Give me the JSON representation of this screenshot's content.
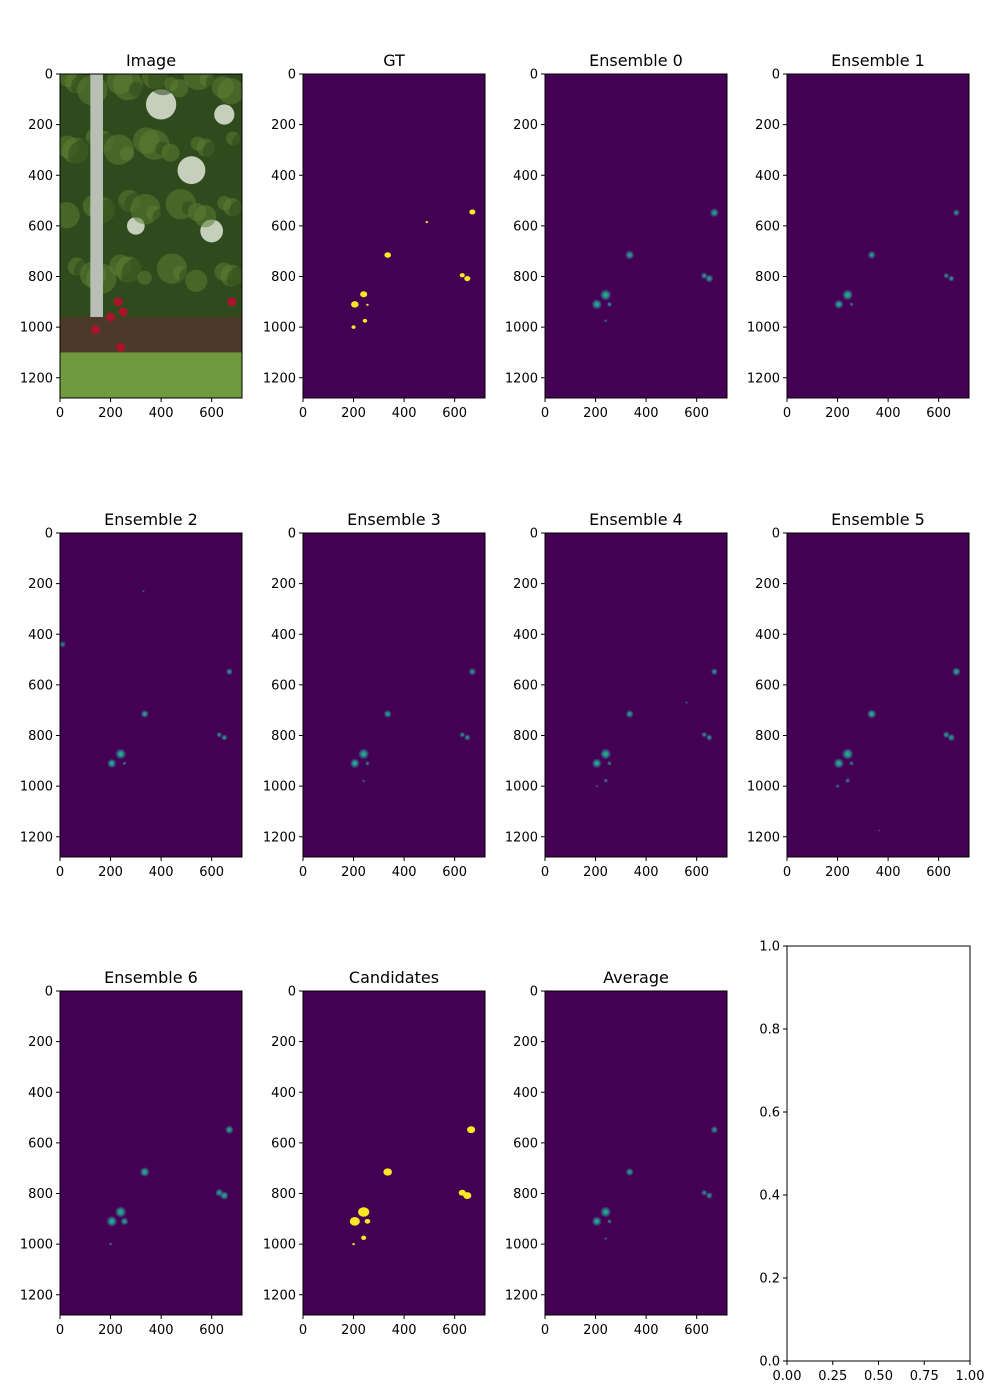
{
  "figure": {
    "background": "#ffffff",
    "colors": {
      "mask_background": "#440154",
      "mask_foreground": "#fde725",
      "blob_core": "#35b779",
      "blob_mid": "#21918c",
      "blob_edge": "#3b528b"
    }
  },
  "chart_data": [
    {
      "type": "heatmap",
      "title": "Image",
      "content": "photo",
      "x_ticks": [
        0,
        200,
        400,
        600
      ],
      "y_ticks": [
        0,
        200,
        400,
        600,
        800,
        1000,
        1200
      ],
      "xlim": [
        0,
        720
      ],
      "ylim": [
        1280,
        0
      ],
      "photo_colors": {
        "sky": "#dfe6d8",
        "foliage": "#2f4a1c",
        "foliage_light": "#5b7f33",
        "trunk": "#b9bfb4",
        "ground": "#4b3a2a",
        "grass": "#6f9a3d",
        "fruit": "#a8142a"
      }
    },
    {
      "type": "heatmap",
      "title": "GT",
      "content": "binary_mask",
      "x_ticks": [
        0,
        200,
        400,
        600
      ],
      "y_ticks": [
        0,
        200,
        400,
        600,
        800,
        1000,
        1200
      ],
      "xlim": [
        0,
        720
      ],
      "ylim": [
        1280,
        0
      ],
      "blobs": [
        {
          "x": 670,
          "y": 545,
          "r": 12
        },
        {
          "x": 490,
          "y": 585,
          "r": 5
        },
        {
          "x": 335,
          "y": 715,
          "r": 13
        },
        {
          "x": 630,
          "y": 795,
          "r": 10
        },
        {
          "x": 650,
          "y": 808,
          "r": 12
        },
        {
          "x": 240,
          "y": 870,
          "r": 14
        },
        {
          "x": 205,
          "y": 910,
          "r": 15
        },
        {
          "x": 255,
          "y": 912,
          "r": 5
        },
        {
          "x": 245,
          "y": 975,
          "r": 9
        },
        {
          "x": 200,
          "y": 1000,
          "r": 8
        }
      ]
    },
    {
      "type": "heatmap",
      "title": "Ensemble 0",
      "content": "probability",
      "x_ticks": [
        0,
        200,
        400,
        600
      ],
      "y_ticks": [
        0,
        200,
        400,
        600,
        800,
        1000,
        1200
      ],
      "xlim": [
        0,
        720
      ],
      "ylim": [
        1280,
        0
      ],
      "blobs": [
        {
          "x": 670,
          "y": 548,
          "r": 16,
          "v": 0.5
        },
        {
          "x": 335,
          "y": 715,
          "r": 16,
          "v": 0.5
        },
        {
          "x": 630,
          "y": 797,
          "r": 12,
          "v": 0.45
        },
        {
          "x": 650,
          "y": 808,
          "r": 14,
          "v": 0.5
        },
        {
          "x": 240,
          "y": 873,
          "r": 20,
          "v": 0.85
        },
        {
          "x": 205,
          "y": 910,
          "r": 18,
          "v": 0.85
        },
        {
          "x": 255,
          "y": 910,
          "r": 9,
          "v": 0.45
        },
        {
          "x": 240,
          "y": 975,
          "r": 6,
          "v": 0.3
        }
      ]
    },
    {
      "type": "heatmap",
      "title": "Ensemble 1",
      "content": "probability",
      "x_ticks": [
        0,
        200,
        400,
        600
      ],
      "y_ticks": [
        0,
        200,
        400,
        600,
        800,
        1000,
        1200
      ],
      "xlim": [
        0,
        720
      ],
      "ylim": [
        1280,
        0
      ],
      "blobs": [
        {
          "x": 670,
          "y": 548,
          "r": 12,
          "v": 0.45
        },
        {
          "x": 335,
          "y": 715,
          "r": 14,
          "v": 0.5
        },
        {
          "x": 630,
          "y": 797,
          "r": 10,
          "v": 0.4
        },
        {
          "x": 650,
          "y": 808,
          "r": 11,
          "v": 0.45
        },
        {
          "x": 240,
          "y": 873,
          "r": 19,
          "v": 0.8
        },
        {
          "x": 205,
          "y": 910,
          "r": 16,
          "v": 0.8
        },
        {
          "x": 255,
          "y": 910,
          "r": 7,
          "v": 0.35
        }
      ]
    },
    {
      "type": "heatmap",
      "title": "Ensemble 2",
      "content": "probability",
      "x_ticks": [
        0,
        200,
        400,
        600
      ],
      "y_ticks": [
        0,
        200,
        400,
        600,
        800,
        1000,
        1200
      ],
      "xlim": [
        0,
        720
      ],
      "ylim": [
        1280,
        0
      ],
      "blobs": [
        {
          "x": 330,
          "y": 230,
          "r": 5,
          "v": 0.2
        },
        {
          "x": 10,
          "y": 440,
          "r": 12,
          "v": 0.3
        },
        {
          "x": 670,
          "y": 548,
          "r": 12,
          "v": 0.45
        },
        {
          "x": 335,
          "y": 715,
          "r": 14,
          "v": 0.5
        },
        {
          "x": 630,
          "y": 797,
          "r": 10,
          "v": 0.4
        },
        {
          "x": 650,
          "y": 808,
          "r": 11,
          "v": 0.45
        },
        {
          "x": 240,
          "y": 873,
          "r": 19,
          "v": 0.8
        },
        {
          "x": 205,
          "y": 910,
          "r": 16,
          "v": 0.85
        },
        {
          "x": 255,
          "y": 910,
          "r": 7,
          "v": 0.35
        }
      ]
    },
    {
      "type": "heatmap",
      "title": "Ensemble 3",
      "content": "probability",
      "x_ticks": [
        0,
        200,
        400,
        600
      ],
      "y_ticks": [
        0,
        200,
        400,
        600,
        800,
        1000,
        1200
      ],
      "xlim": [
        0,
        720
      ],
      "ylim": [
        1280,
        0
      ],
      "blobs": [
        {
          "x": 670,
          "y": 548,
          "r": 13,
          "v": 0.45
        },
        {
          "x": 335,
          "y": 715,
          "r": 14,
          "v": 0.5
        },
        {
          "x": 630,
          "y": 797,
          "r": 10,
          "v": 0.4
        },
        {
          "x": 650,
          "y": 808,
          "r": 11,
          "v": 0.45
        },
        {
          "x": 240,
          "y": 873,
          "r": 19,
          "v": 0.8
        },
        {
          "x": 205,
          "y": 910,
          "r": 17,
          "v": 0.85
        },
        {
          "x": 255,
          "y": 910,
          "r": 8,
          "v": 0.4
        },
        {
          "x": 240,
          "y": 980,
          "r": 6,
          "v": 0.25
        }
      ]
    },
    {
      "type": "heatmap",
      "title": "Ensemble 4",
      "content": "probability",
      "x_ticks": [
        0,
        200,
        400,
        600
      ],
      "y_ticks": [
        0,
        200,
        400,
        600,
        800,
        1000,
        1200
      ],
      "xlim": [
        0,
        720
      ],
      "ylim": [
        1280,
        0
      ],
      "blobs": [
        {
          "x": 670,
          "y": 548,
          "r": 12,
          "v": 0.45
        },
        {
          "x": 560,
          "y": 670,
          "r": 5,
          "v": 0.2
        },
        {
          "x": 335,
          "y": 715,
          "r": 14,
          "v": 0.5
        },
        {
          "x": 630,
          "y": 797,
          "r": 10,
          "v": 0.4
        },
        {
          "x": 650,
          "y": 808,
          "r": 11,
          "v": 0.45
        },
        {
          "x": 240,
          "y": 873,
          "r": 19,
          "v": 0.85
        },
        {
          "x": 205,
          "y": 910,
          "r": 17,
          "v": 0.85
        },
        {
          "x": 255,
          "y": 910,
          "r": 8,
          "v": 0.4
        },
        {
          "x": 240,
          "y": 978,
          "r": 8,
          "v": 0.3
        },
        {
          "x": 205,
          "y": 1000,
          "r": 5,
          "v": 0.25
        }
      ]
    },
    {
      "type": "heatmap",
      "title": "Ensemble 5",
      "content": "probability",
      "x_ticks": [
        0,
        200,
        400,
        600
      ],
      "y_ticks": [
        0,
        200,
        400,
        600,
        800,
        1000,
        1200
      ],
      "xlim": [
        0,
        720
      ],
      "ylim": [
        1280,
        0
      ],
      "blobs": [
        {
          "x": 670,
          "y": 548,
          "r": 15,
          "v": 0.55
        },
        {
          "x": 335,
          "y": 715,
          "r": 16,
          "v": 0.6
        },
        {
          "x": 630,
          "y": 797,
          "r": 12,
          "v": 0.45
        },
        {
          "x": 650,
          "y": 808,
          "r": 13,
          "v": 0.5
        },
        {
          "x": 240,
          "y": 873,
          "r": 20,
          "v": 0.85
        },
        {
          "x": 205,
          "y": 910,
          "r": 18,
          "v": 0.85
        },
        {
          "x": 255,
          "y": 910,
          "r": 8,
          "v": 0.4
        },
        {
          "x": 240,
          "y": 978,
          "r": 9,
          "v": 0.35
        },
        {
          "x": 200,
          "y": 1000,
          "r": 7,
          "v": 0.3
        },
        {
          "x": 365,
          "y": 1175,
          "r": 4,
          "v": 0.2
        }
      ]
    },
    {
      "type": "heatmap",
      "title": "Ensemble 6",
      "content": "probability",
      "x_ticks": [
        0,
        200,
        400,
        600
      ],
      "y_ticks": [
        0,
        200,
        400,
        600,
        800,
        1000,
        1200
      ],
      "xlim": [
        0,
        720
      ],
      "ylim": [
        1280,
        0
      ],
      "blobs": [
        {
          "x": 670,
          "y": 548,
          "r": 15,
          "v": 0.55
        },
        {
          "x": 335,
          "y": 715,
          "r": 17,
          "v": 0.6
        },
        {
          "x": 630,
          "y": 797,
          "r": 14,
          "v": 0.5
        },
        {
          "x": 650,
          "y": 808,
          "r": 15,
          "v": 0.55
        },
        {
          "x": 240,
          "y": 873,
          "r": 20,
          "v": 0.85
        },
        {
          "x": 205,
          "y": 910,
          "r": 19,
          "v": 0.85
        },
        {
          "x": 255,
          "y": 910,
          "r": 14,
          "v": 0.5
        },
        {
          "x": 200,
          "y": 1000,
          "r": 6,
          "v": 0.3
        }
      ]
    },
    {
      "type": "heatmap",
      "title": "Candidates",
      "content": "binary_mask",
      "x_ticks": [
        0,
        200,
        400,
        600
      ],
      "y_ticks": [
        0,
        200,
        400,
        600,
        800,
        1000,
        1200
      ],
      "xlim": [
        0,
        720
      ],
      "ylim": [
        1280,
        0
      ],
      "blobs": [
        {
          "x": 665,
          "y": 548,
          "r": 16
        },
        {
          "x": 335,
          "y": 715,
          "r": 17
        },
        {
          "x": 630,
          "y": 797,
          "r": 14
        },
        {
          "x": 650,
          "y": 808,
          "r": 16
        },
        {
          "x": 240,
          "y": 873,
          "r": 22
        },
        {
          "x": 205,
          "y": 910,
          "r": 20
        },
        {
          "x": 255,
          "y": 910,
          "r": 11
        },
        {
          "x": 240,
          "y": 975,
          "r": 10
        },
        {
          "x": 200,
          "y": 1000,
          "r": 5
        }
      ]
    },
    {
      "type": "heatmap",
      "title": "Average",
      "content": "probability",
      "x_ticks": [
        0,
        200,
        400,
        600
      ],
      "y_ticks": [
        0,
        200,
        400,
        600,
        800,
        1000,
        1200
      ],
      "xlim": [
        0,
        720
      ],
      "ylim": [
        1280,
        0
      ],
      "blobs": [
        {
          "x": 670,
          "y": 548,
          "r": 13,
          "v": 0.45
        },
        {
          "x": 335,
          "y": 715,
          "r": 14,
          "v": 0.5
        },
        {
          "x": 630,
          "y": 797,
          "r": 11,
          "v": 0.4
        },
        {
          "x": 650,
          "y": 808,
          "r": 12,
          "v": 0.45
        },
        {
          "x": 240,
          "y": 873,
          "r": 19,
          "v": 0.8
        },
        {
          "x": 205,
          "y": 910,
          "r": 17,
          "v": 0.8
        },
        {
          "x": 255,
          "y": 910,
          "r": 8,
          "v": 0.4
        },
        {
          "x": 240,
          "y": 978,
          "r": 6,
          "v": 0.25
        }
      ]
    },
    {
      "type": "empty",
      "title": "",
      "x_ticks": [
        "0.00",
        "0.25",
        "0.50",
        "0.75",
        "1.00"
      ],
      "y_ticks": [
        "0.0",
        "0.2",
        "0.4",
        "0.6",
        "0.8",
        "1.0"
      ],
      "xlim": [
        0,
        1
      ],
      "ylim": [
        0,
        1
      ]
    }
  ]
}
